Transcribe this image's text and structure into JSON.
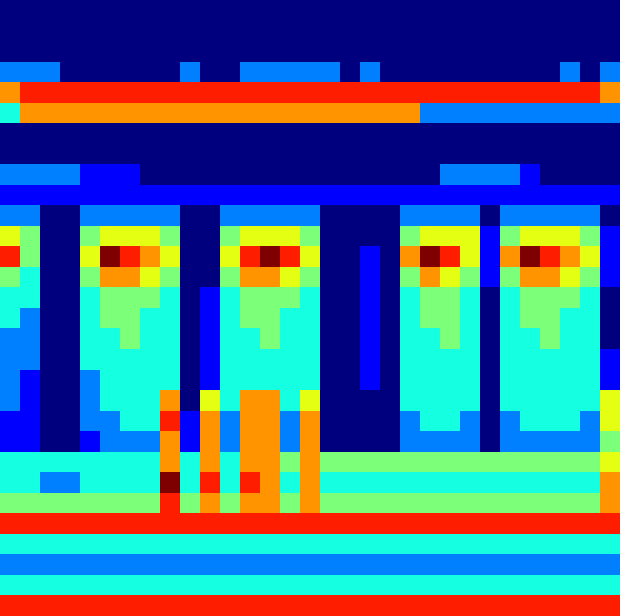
{
  "chart_data": {
    "type": "heatmap",
    "tick_labels": false,
    "cells": [
      [
        0,
        0,
        0,
        0,
        0,
        0,
        0,
        0,
        0,
        0,
        0,
        0,
        0,
        0,
        0,
        0,
        0,
        0,
        0,
        0,
        0,
        0,
        0,
        0,
        0,
        0,
        0,
        0,
        0,
        0,
        0
      ],
      [
        0,
        0,
        0,
        0,
        0,
        0,
        0,
        0,
        0,
        0,
        0,
        0,
        0,
        0,
        0,
        0,
        0,
        0,
        0,
        0,
        0,
        0,
        0,
        0,
        0,
        0,
        0,
        0,
        0,
        0,
        0
      ],
      [
        0,
        0,
        0,
        0,
        0,
        0,
        0,
        0,
        0,
        0,
        0,
        0,
        0,
        0,
        0,
        0,
        0,
        0,
        0,
        0,
        0,
        0,
        0,
        0,
        0,
        0,
        0,
        0,
        0,
        0,
        0
      ],
      [
        2,
        2,
        2,
        0,
        0,
        0,
        0,
        0,
        0,
        2,
        0,
        0,
        2,
        2,
        2,
        2,
        2,
        0,
        2,
        0,
        0,
        0,
        0,
        0,
        0,
        0,
        0,
        0,
        2,
        0,
        2
      ],
      [
        6,
        7,
        7,
        7,
        7,
        7,
        7,
        7,
        7,
        7,
        7,
        7,
        7,
        7,
        7,
        7,
        7,
        7,
        7,
        7,
        7,
        7,
        7,
        7,
        7,
        7,
        7,
        7,
        7,
        7,
        6
      ],
      [
        3,
        6,
        6,
        6,
        6,
        6,
        6,
        6,
        6,
        6,
        6,
        6,
        6,
        6,
        6,
        6,
        6,
        6,
        6,
        6,
        6,
        2,
        2,
        2,
        2,
        2,
        2,
        2,
        2,
        2,
        2
      ],
      [
        0,
        0,
        0,
        0,
        0,
        0,
        0,
        0,
        0,
        0,
        0,
        0,
        0,
        0,
        0,
        0,
        0,
        0,
        0,
        0,
        0,
        0,
        0,
        0,
        0,
        0,
        0,
        0,
        0,
        0,
        0
      ],
      [
        0,
        0,
        0,
        0,
        0,
        0,
        0,
        0,
        0,
        0,
        0,
        0,
        0,
        0,
        0,
        0,
        0,
        0,
        0,
        0,
        0,
        0,
        0,
        0,
        0,
        0,
        0,
        0,
        0,
        0,
        0
      ],
      [
        2,
        2,
        2,
        2,
        1,
        1,
        1,
        0,
        0,
        0,
        0,
        0,
        0,
        0,
        0,
        0,
        0,
        0,
        0,
        0,
        0,
        0,
        2,
        2,
        2,
        2,
        1,
        0,
        0,
        0,
        0
      ],
      [
        1,
        1,
        1,
        1,
        1,
        1,
        1,
        1,
        1,
        1,
        1,
        1,
        1,
        1,
        1,
        1,
        1,
        1,
        1,
        1,
        1,
        1,
        1,
        1,
        1,
        1,
        1,
        1,
        1,
        1,
        1
      ],
      [
        2,
        2,
        0,
        0,
        2,
        2,
        2,
        2,
        2,
        0,
        0,
        2,
        2,
        2,
        2,
        2,
        0,
        0,
        0,
        0,
        2,
        2,
        2,
        2,
        0,
        2,
        2,
        2,
        2,
        2,
        0
      ],
      [
        5,
        4,
        0,
        0,
        4,
        5,
        5,
        5,
        4,
        0,
        0,
        4,
        5,
        5,
        5,
        4,
        0,
        0,
        0,
        0,
        4,
        5,
        5,
        5,
        1,
        4,
        5,
        5,
        5,
        4,
        1
      ],
      [
        7,
        4,
        0,
        0,
        5,
        8,
        7,
        6,
        5,
        0,
        0,
        5,
        7,
        8,
        7,
        5,
        0,
        0,
        1,
        0,
        6,
        8,
        7,
        5,
        1,
        6,
        8,
        7,
        6,
        5,
        1
      ],
      [
        4,
        3,
        0,
        0,
        4,
        6,
        6,
        5,
        4,
        0,
        0,
        4,
        6,
        6,
        5,
        4,
        0,
        0,
        1,
        0,
        4,
        6,
        5,
        4,
        1,
        4,
        6,
        6,
        5,
        4,
        1
      ],
      [
        3,
        3,
        0,
        0,
        3,
        4,
        4,
        4,
        3,
        0,
        1,
        3,
        4,
        4,
        4,
        3,
        0,
        0,
        1,
        0,
        3,
        4,
        4,
        3,
        0,
        3,
        4,
        4,
        4,
        3,
        0
      ],
      [
        3,
        2,
        0,
        0,
        3,
        4,
        4,
        3,
        3,
        0,
        1,
        3,
        4,
        4,
        3,
        3,
        0,
        0,
        1,
        0,
        3,
        4,
        4,
        3,
        0,
        3,
        4,
        4,
        3,
        3,
        0
      ],
      [
        2,
        2,
        0,
        0,
        3,
        3,
        4,
        3,
        3,
        0,
        1,
        3,
        3,
        4,
        3,
        3,
        0,
        0,
        1,
        0,
        3,
        3,
        4,
        3,
        0,
        3,
        3,
        4,
        3,
        3,
        0
      ],
      [
        2,
        2,
        0,
        0,
        3,
        3,
        3,
        3,
        3,
        0,
        1,
        3,
        3,
        3,
        3,
        3,
        0,
        0,
        1,
        0,
        3,
        3,
        3,
        3,
        0,
        3,
        3,
        3,
        3,
        3,
        1
      ],
      [
        2,
        1,
        0,
        0,
        2,
        3,
        3,
        3,
        3,
        0,
        1,
        3,
        3,
        3,
        3,
        3,
        0,
        0,
        1,
        0,
        3,
        3,
        3,
        3,
        0,
        3,
        3,
        3,
        3,
        3,
        1
      ],
      [
        2,
        1,
        0,
        0,
        2,
        3,
        3,
        3,
        6,
        0,
        5,
        3,
        6,
        6,
        3,
        5,
        0,
        0,
        0,
        0,
        3,
        3,
        3,
        3,
        0,
        3,
        3,
        3,
        3,
        3,
        5
      ],
      [
        1,
        1,
        0,
        0,
        2,
        2,
        3,
        3,
        7,
        1,
        6,
        2,
        6,
        6,
        2,
        6,
        0,
        0,
        0,
        0,
        2,
        3,
        3,
        2,
        0,
        2,
        3,
        3,
        3,
        2,
        5
      ],
      [
        1,
        1,
        0,
        0,
        1,
        2,
        2,
        2,
        6,
        1,
        6,
        2,
        6,
        6,
        2,
        6,
        0,
        0,
        0,
        0,
        2,
        2,
        2,
        2,
        0,
        2,
        2,
        2,
        2,
        2,
        4
      ],
      [
        3,
        3,
        3,
        3,
        3,
        3,
        3,
        3,
        6,
        3,
        6,
        3,
        6,
        6,
        4,
        6,
        4,
        4,
        4,
        4,
        4,
        4,
        4,
        4,
        4,
        4,
        4,
        4,
        4,
        4,
        5
      ],
      [
        3,
        3,
        2,
        2,
        3,
        3,
        3,
        3,
        8,
        3,
        7,
        3,
        7,
        6,
        3,
        6,
        3,
        3,
        3,
        3,
        3,
        3,
        3,
        3,
        3,
        3,
        3,
        3,
        3,
        3,
        6
      ],
      [
        4,
        4,
        4,
        4,
        4,
        4,
        4,
        4,
        7,
        4,
        6,
        4,
        6,
        6,
        4,
        6,
        4,
        4,
        4,
        4,
        4,
        4,
        4,
        4,
        4,
        4,
        4,
        4,
        4,
        4,
        6
      ],
      [
        7,
        7,
        7,
        7,
        7,
        7,
        7,
        7,
        7,
        7,
        7,
        7,
        7,
        7,
        7,
        7,
        7,
        7,
        7,
        7,
        7,
        7,
        7,
        7,
        7,
        7,
        7,
        7,
        7,
        7,
        7
      ],
      [
        3,
        3,
        3,
        3,
        3,
        3,
        3,
        3,
        3,
        3,
        3,
        3,
        3,
        3,
        3,
        3,
        3,
        3,
        3,
        3,
        3,
        3,
        3,
        3,
        3,
        3,
        3,
        3,
        3,
        3,
        3
      ],
      [
        2,
        2,
        2,
        2,
        2,
        2,
        2,
        2,
        2,
        2,
        2,
        2,
        2,
        2,
        2,
        2,
        2,
        2,
        2,
        2,
        2,
        2,
        2,
        2,
        2,
        2,
        2,
        2,
        2,
        2,
        2
      ],
      [
        3,
        3,
        3,
        3,
        3,
        3,
        3,
        3,
        3,
        3,
        3,
        3,
        3,
        3,
        3,
        3,
        3,
        3,
        3,
        3,
        3,
        3,
        3,
        3,
        3,
        3,
        3,
        3,
        3,
        3,
        3
      ],
      [
        7,
        7,
        7,
        7,
        7,
        7,
        7,
        7,
        7,
        7,
        7,
        7,
        7,
        7,
        7,
        7,
        7,
        7,
        7,
        7,
        7,
        7,
        7,
        7,
        7,
        7,
        7,
        7,
        7,
        7,
        7
      ]
    ]
  }
}
